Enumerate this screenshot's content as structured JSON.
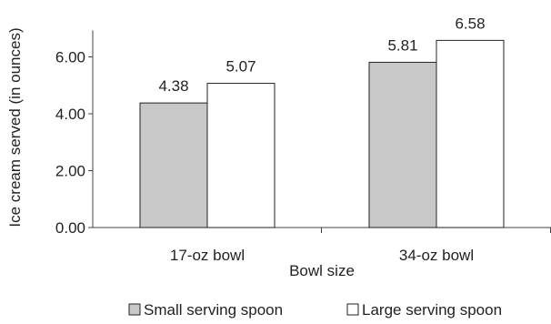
{
  "chart_data": {
    "type": "bar",
    "title": "",
    "xlabel": "Bowl size",
    "ylabel": "Ice cream served (in ounces)",
    "categories": [
      "17-oz bowl",
      "34-oz bowl"
    ],
    "series": [
      {
        "name": "Small serving spoon",
        "values": [
          4.38,
          5.81
        ],
        "color": "#c8c8c8"
      },
      {
        "name": "Large serving spoon",
        "values": [
          5.07,
          6.58
        ],
        "color": "#ffffff"
      }
    ],
    "data_labels": [
      [
        "4.38",
        "5.81"
      ],
      [
        "5.07",
        "6.58"
      ]
    ],
    "ylim": [
      0,
      7
    ],
    "yticks": [
      0,
      2,
      4,
      6
    ],
    "ytick_labels": [
      "0.00",
      "2.00",
      "4.00",
      "6.00"
    ],
    "grid": false,
    "legend_position": "bottom"
  }
}
